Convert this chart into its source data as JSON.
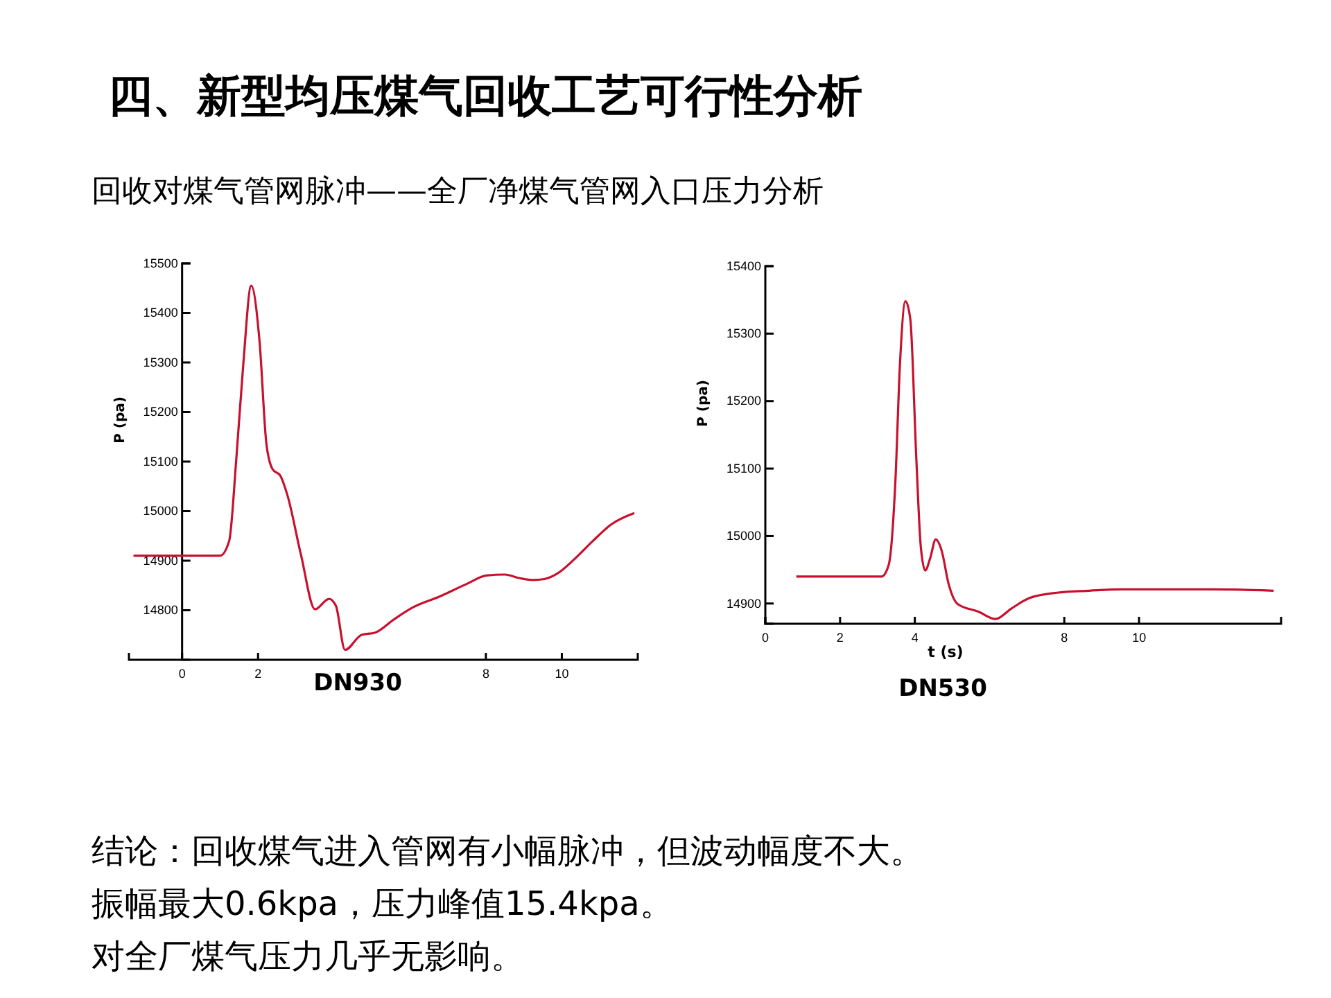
{
  "chart_data": [
    {
      "type": "line",
      "title": "DN930",
      "ylabel": "P (pa)",
      "annotations": [
        "四、新型均压煤气回收工艺可行性分析",
        "回收对煤气管网脉冲——全厂净煤气管网入口压力分析",
        "结论：回收煤气进入管网有小幅脉冲，但波动幅度不大。",
        "振幅最大0.6kpa，压力峰值15.4kpa。",
        "对全厂煤气压力几乎无影响。"
      ],
      "xlim": [
        -1.4,
        12
      ],
      "xticks": [
        0,
        2,
        8,
        10
      ],
      "ylim": [
        14700,
        15500
      ],
      "yticks": [
        14800,
        14900,
        15000,
        15100,
        15200,
        15300,
        15400,
        15500
      ],
      "series": [
        {
          "color": "#c8102e",
          "x": [
            -1.28,
            1.0,
            1.24,
            1.43,
            1.61,
            1.82,
            2.04,
            2.22,
            2.38,
            2.59,
            2.77,
            3.13,
            3.5,
            3.87,
            4.05,
            4.29,
            4.72,
            5.09,
            5.57,
            6.06,
            6.79,
            7.52,
            8.01,
            8.5,
            8.87,
            9.23,
            9.54,
            9.9,
            10.33,
            10.82,
            11.3,
            11.91
          ],
          "values": [
            14910,
            14910,
            14940,
            15108,
            15295,
            15455,
            15342,
            15136,
            15085,
            15071,
            15033,
            14912,
            14802,
            14823,
            14809,
            14720,
            14750,
            14755,
            14781,
            14805,
            14828,
            14854,
            14870,
            14872,
            14865,
            14861,
            14863,
            14875,
            14903,
            14940,
            14973,
            14996
          ]
        }
      ]
    },
    {
      "type": "line",
      "title": "DN530",
      "xlabel": "t (s)",
      "ylabel": "P (pa)",
      "xlim": [
        0,
        13.8
      ],
      "xticks": [
        0,
        2,
        4,
        8,
        10
      ],
      "ylim": [
        14870,
        15400
      ],
      "yticks": [
        14900,
        15000,
        15100,
        15200,
        15300,
        15400
      ],
      "series": [
        {
          "color": "#c8102e",
          "x": [
            0.83,
            3.11,
            3.3,
            3.48,
            3.6,
            3.75,
            3.88,
            4.04,
            4.16,
            4.28,
            4.41,
            4.56,
            4.72,
            4.9,
            5.15,
            5.7,
            6.16,
            6.57,
            7.06,
            7.8,
            8.67,
            9.53,
            10.77,
            11.99,
            13.6
          ],
          "values": [
            14940,
            14940,
            14957,
            15081,
            15252,
            15348,
            15321,
            15115,
            14984,
            14949,
            14967,
            14995,
            14978,
            14930,
            14899,
            14888,
            14877,
            14892,
            14908,
            14916,
            14919,
            14921,
            14921,
            14921,
            14919
          ]
        }
      ]
    }
  ]
}
